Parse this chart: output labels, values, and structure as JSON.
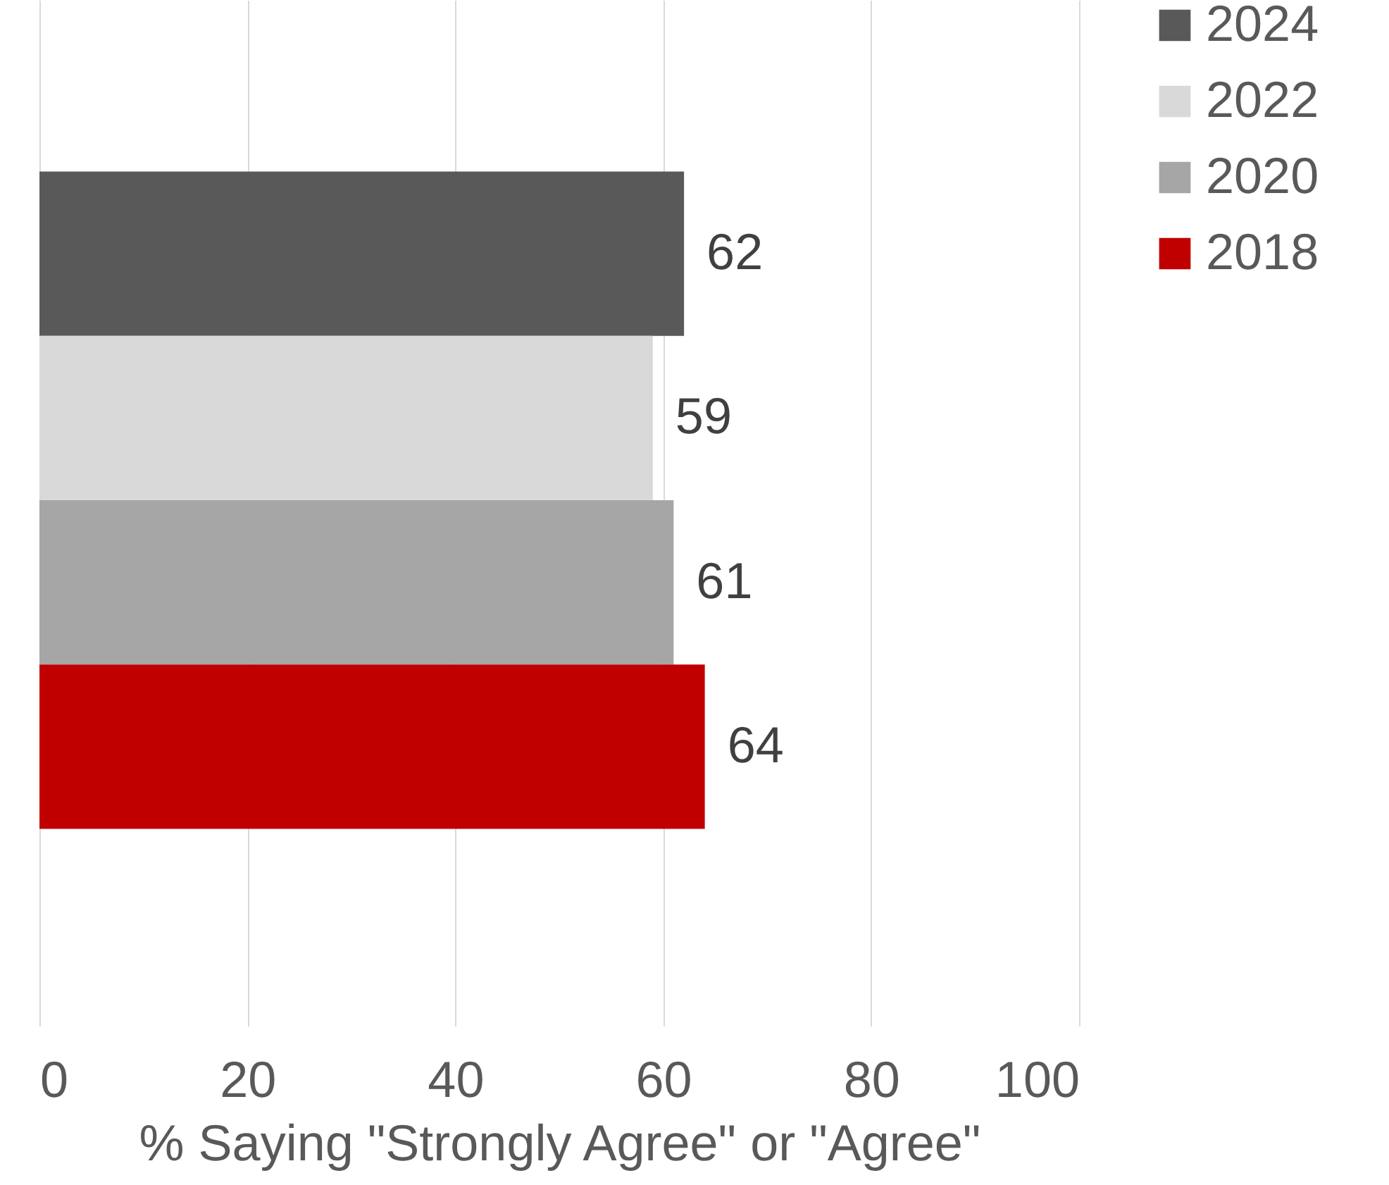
{
  "chart_data": {
    "type": "bar",
    "orientation": "horizontal",
    "xlabel": "% Saying \"Strongly Agree\" or \"Agree\"",
    "categories": [
      null
    ],
    "series": [
      {
        "name": "2024",
        "color": "#595959",
        "values": [
          62
        ]
      },
      {
        "name": "2022",
        "color": "#d9d9d9",
        "values": [
          59
        ]
      },
      {
        "name": "2020",
        "color": "#a6a6a6",
        "values": [
          61
        ]
      },
      {
        "name": "2018",
        "color": "#c00000",
        "values": [
          64
        ]
      }
    ],
    "xlim": [
      0,
      100
    ],
    "xticks": [
      0,
      20,
      40,
      60,
      80,
      100
    ],
    "grid": "x",
    "legend": "right",
    "data_labels": true
  }
}
